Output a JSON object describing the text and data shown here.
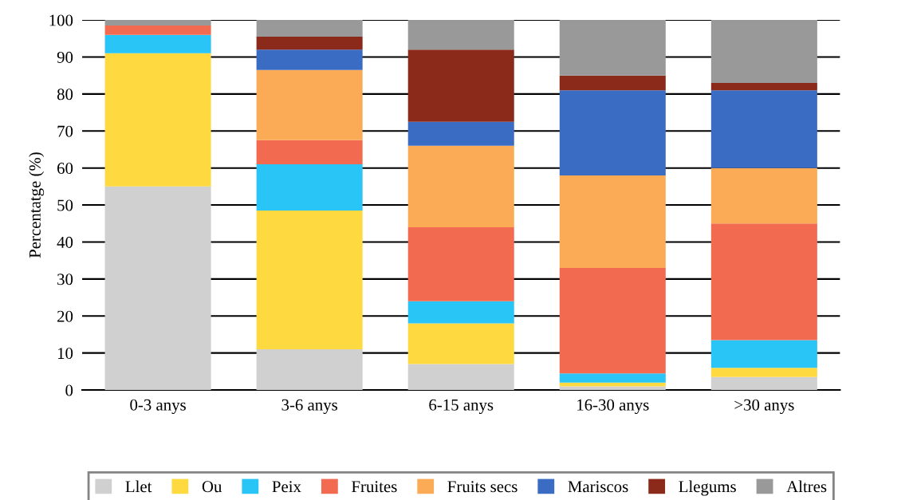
{
  "chart_data": {
    "type": "bar",
    "stacked": true,
    "ylabel": "Percentatge (%)",
    "categories": [
      "0-3 anys",
      "3-6 anys",
      "6-15 anys",
      "16-30 anys",
      ">30 anys"
    ],
    "series": [
      {
        "name": "Llet",
        "color": "#d0d0d0",
        "values": [
          55,
          11,
          7,
          1,
          3.5
        ]
      },
      {
        "name": "Ou",
        "color": "#ffd940",
        "values": [
          36,
          37.5,
          11,
          1,
          2.5
        ]
      },
      {
        "name": "Peix",
        "color": "#29c5f6",
        "values": [
          5,
          12.5,
          6,
          2.5,
          7.5
        ]
      },
      {
        "name": "Fruites",
        "color": "#f26a50",
        "values": [
          2.5,
          6.5,
          20,
          28.5,
          31.5
        ]
      },
      {
        "name": "Fruits secs",
        "color": "#fbaa55",
        "values": [
          0,
          19,
          22,
          25,
          15
        ]
      },
      {
        "name": "Mariscos",
        "color": "#3a6cc4",
        "values": [
          0,
          5.5,
          6.5,
          23,
          21
        ]
      },
      {
        "name": "Llegums",
        "color": "#8b2a1a",
        "values": [
          0,
          3.5,
          19.5,
          4,
          2
        ]
      },
      {
        "name": "Altres",
        "color": "#999999",
        "values": [
          1.5,
          4.5,
          8,
          15,
          17
        ]
      }
    ],
    "ylim": [
      0,
      100
    ],
    "yticks": [
      0,
      10,
      20,
      30,
      40,
      50,
      60,
      70,
      80,
      90,
      100
    ],
    "grid": "y",
    "legend": "bottom"
  }
}
